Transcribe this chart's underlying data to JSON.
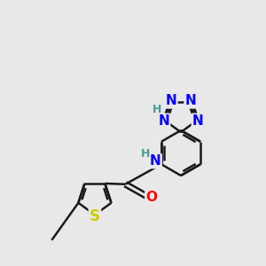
{
  "background_color": "#e8e8e8",
  "bond_color": "#1a1a1a",
  "bond_width": 1.8,
  "atom_colors": {
    "N": "#0000ff",
    "O": "#ff0000",
    "S": "#cccc00",
    "H_label": "#4a9a9a",
    "C": "#1a1a1a"
  },
  "font_size_atoms": 11,
  "font_size_H": 9,
  "xlim": [
    0,
    10
  ],
  "ylim": [
    0,
    10
  ]
}
